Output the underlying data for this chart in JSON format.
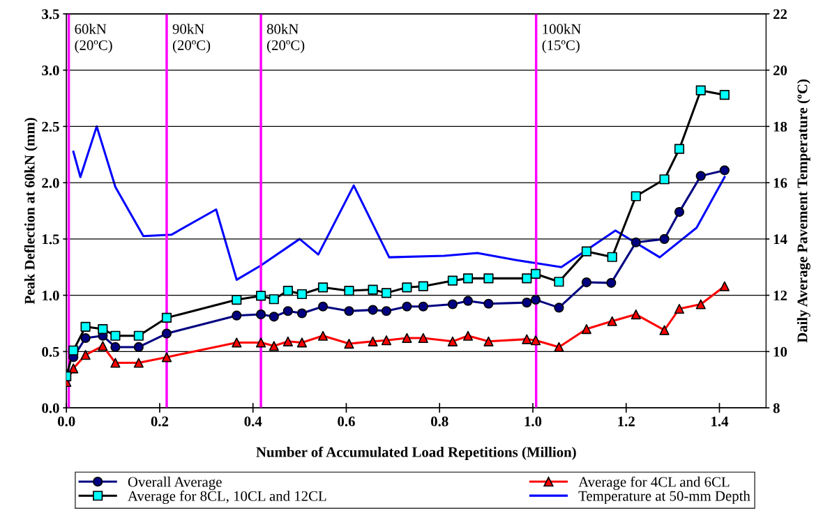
{
  "chart_data": {
    "type": "line",
    "xlabel": "Number of Accumulated Load Repetitions (Million)",
    "ylabel": "Peak Deflection at 60kN (mm)",
    "y2label": "Daily Average Pavement Temperature (ºC)",
    "xlim": [
      0,
      1.5
    ],
    "xticks": [
      {
        "value": 0,
        "label": "0.0"
      },
      {
        "value": 0.2,
        "label": "0.2"
      },
      {
        "value": 0.4,
        "label": "0.4"
      },
      {
        "value": 0.6,
        "label": "0.6"
      },
      {
        "value": 0.8,
        "label": "0.8"
      },
      {
        "value": 1.0,
        "label": "1.0"
      },
      {
        "value": 1.2,
        "label": "1.2"
      },
      {
        "value": 1.4,
        "label": "1.4"
      }
    ],
    "ylim": [
      0,
      3.5
    ],
    "yticks": [
      {
        "value": 0,
        "label": "0.0"
      },
      {
        "value": 0.5,
        "label": "0.5"
      },
      {
        "value": 1.0,
        "label": "1.0"
      },
      {
        "value": 1.5,
        "label": "1.5"
      },
      {
        "value": 2.0,
        "label": "2.0"
      },
      {
        "value": 2.5,
        "label": "2.5"
      },
      {
        "value": 3.0,
        "label": "3.0"
      },
      {
        "value": 3.5,
        "label": "3.5"
      }
    ],
    "y2lim": [
      8,
      22
    ],
    "y2ticks": [
      8,
      10,
      12,
      14,
      16,
      18,
      20,
      22
    ],
    "grid": "y",
    "legend": "bottom",
    "series": [
      {
        "name": "Overall Average",
        "marker": "circle",
        "color": "#000080",
        "x": [
          0.015,
          0.041,
          0.078,
          0.105,
          0.155,
          0.215,
          0.365,
          0.417,
          0.445,
          0.475,
          0.505,
          0.55,
          0.606,
          0.657,
          0.686,
          0.73,
          0.765,
          0.828,
          0.861,
          0.905,
          0.987,
          1.006,
          1.056,
          1.115,
          1.168,
          1.221,
          1.282,
          1.314,
          1.36,
          1.411
        ],
        "values": [
          0.45,
          0.62,
          0.64,
          0.54,
          0.54,
          0.66,
          0.82,
          0.83,
          0.81,
          0.86,
          0.84,
          0.9,
          0.86,
          0.87,
          0.86,
          0.9,
          0.9,
          0.92,
          0.95,
          0.925,
          0.935,
          0.96,
          0.89,
          1.115,
          1.11,
          1.47,
          1.5,
          1.74,
          2.06,
          2.11
        ]
      },
      {
        "name": "Average for 4CL and 6CL",
        "marker": "triangle",
        "color": "#ff0000",
        "x": [
          0.0,
          0.015,
          0.041,
          0.078,
          0.105,
          0.155,
          0.215,
          0.365,
          0.417,
          0.445,
          0.475,
          0.505,
          0.55,
          0.606,
          0.657,
          0.686,
          0.73,
          0.765,
          0.828,
          0.861,
          0.905,
          0.987,
          1.006,
          1.056,
          1.115,
          1.17,
          1.221,
          1.282,
          1.314,
          1.36,
          1.411
        ],
        "values": [
          0.23,
          0.35,
          0.47,
          0.55,
          0.4,
          0.4,
          0.45,
          0.58,
          0.58,
          0.55,
          0.59,
          0.58,
          0.64,
          0.57,
          0.59,
          0.6,
          0.62,
          0.62,
          0.59,
          0.64,
          0.59,
          0.61,
          0.6,
          0.54,
          0.7,
          0.77,
          0.83,
          0.69,
          0.88,
          0.92,
          1.08
        ]
      },
      {
        "name": "Average for 8CL, 10CL and 12CL",
        "marker": "square",
        "color": "#000000",
        "colors": [
          "#00ffff",
          "#00ffff",
          "#00ffff",
          "#00ffff",
          "#00ffff",
          "#00ffff",
          "#00ffff",
          "#00ffff",
          "#00ffff",
          "#00ffff",
          "#00ffff",
          "#00ffff",
          "#00ffff",
          "#00ffff",
          "#00ffff",
          "#00ffff",
          "#00ffff",
          "#00ffff",
          "#00ffff",
          "#00ffff",
          "#00ffff",
          "#00ffff",
          "#00ffff",
          "#00ffff",
          "#00ffff",
          "#00ffff",
          "#00ffff",
          "#00ffff",
          "#00ffff",
          "#00ffff",
          "#00ffff"
        ],
        "x": [
          0.0,
          0.015,
          0.041,
          0.078,
          0.105,
          0.155,
          0.215,
          0.365,
          0.417,
          0.445,
          0.475,
          0.505,
          0.55,
          0.606,
          0.657,
          0.686,
          0.73,
          0.765,
          0.828,
          0.861,
          0.905,
          0.987,
          1.006,
          1.056,
          1.115,
          1.17,
          1.221,
          1.282,
          1.314,
          1.36,
          1.411
        ],
        "values": [
          0.28,
          0.51,
          0.72,
          0.7,
          0.64,
          0.64,
          0.8,
          0.96,
          0.995,
          0.965,
          1.04,
          1.01,
          1.07,
          1.04,
          1.05,
          1.02,
          1.07,
          1.08,
          1.13,
          1.15,
          1.15,
          1.15,
          1.19,
          1.12,
          1.39,
          1.34,
          1.88,
          2.03,
          2.3,
          2.82,
          2.78
        ]
      },
      {
        "name": "Temperature at 50-mm Depth",
        "marker": "none",
        "axis": "y2",
        "color": "#0000ff",
        "x": [
          0.015,
          0.03,
          0.065,
          0.105,
          0.165,
          0.225,
          0.321,
          0.365,
          0.416,
          0.5,
          0.54,
          0.616,
          0.692,
          0.81,
          0.881,
          0.965,
          1.061,
          1.177,
          1.272,
          1.351,
          1.411
        ],
        "values": [
          17.1,
          16.2,
          18.0,
          15.85,
          14.1,
          14.15,
          15.05,
          12.55,
          13.05,
          14.0,
          13.45,
          15.9,
          13.35,
          13.4,
          13.5,
          13.25,
          13.0,
          14.3,
          13.35,
          14.4,
          16.2
        ]
      }
    ],
    "ref_lines": [
      {
        "axis": "x",
        "value": 0.005,
        "label": "60kN\n(20ºC)",
        "color": "#ff00ff"
      },
      {
        "axis": "x",
        "value": 0.215,
        "label": "90kN\n(20ºC)",
        "color": "#ff00ff"
      },
      {
        "axis": "x",
        "value": 0.417,
        "label": "80kN\n(20ºC)",
        "color": "#ff00ff"
      },
      {
        "axis": "x",
        "value": 1.007,
        "label": "100kN\n(15ºC)",
        "color": "#ff00ff"
      }
    ]
  }
}
